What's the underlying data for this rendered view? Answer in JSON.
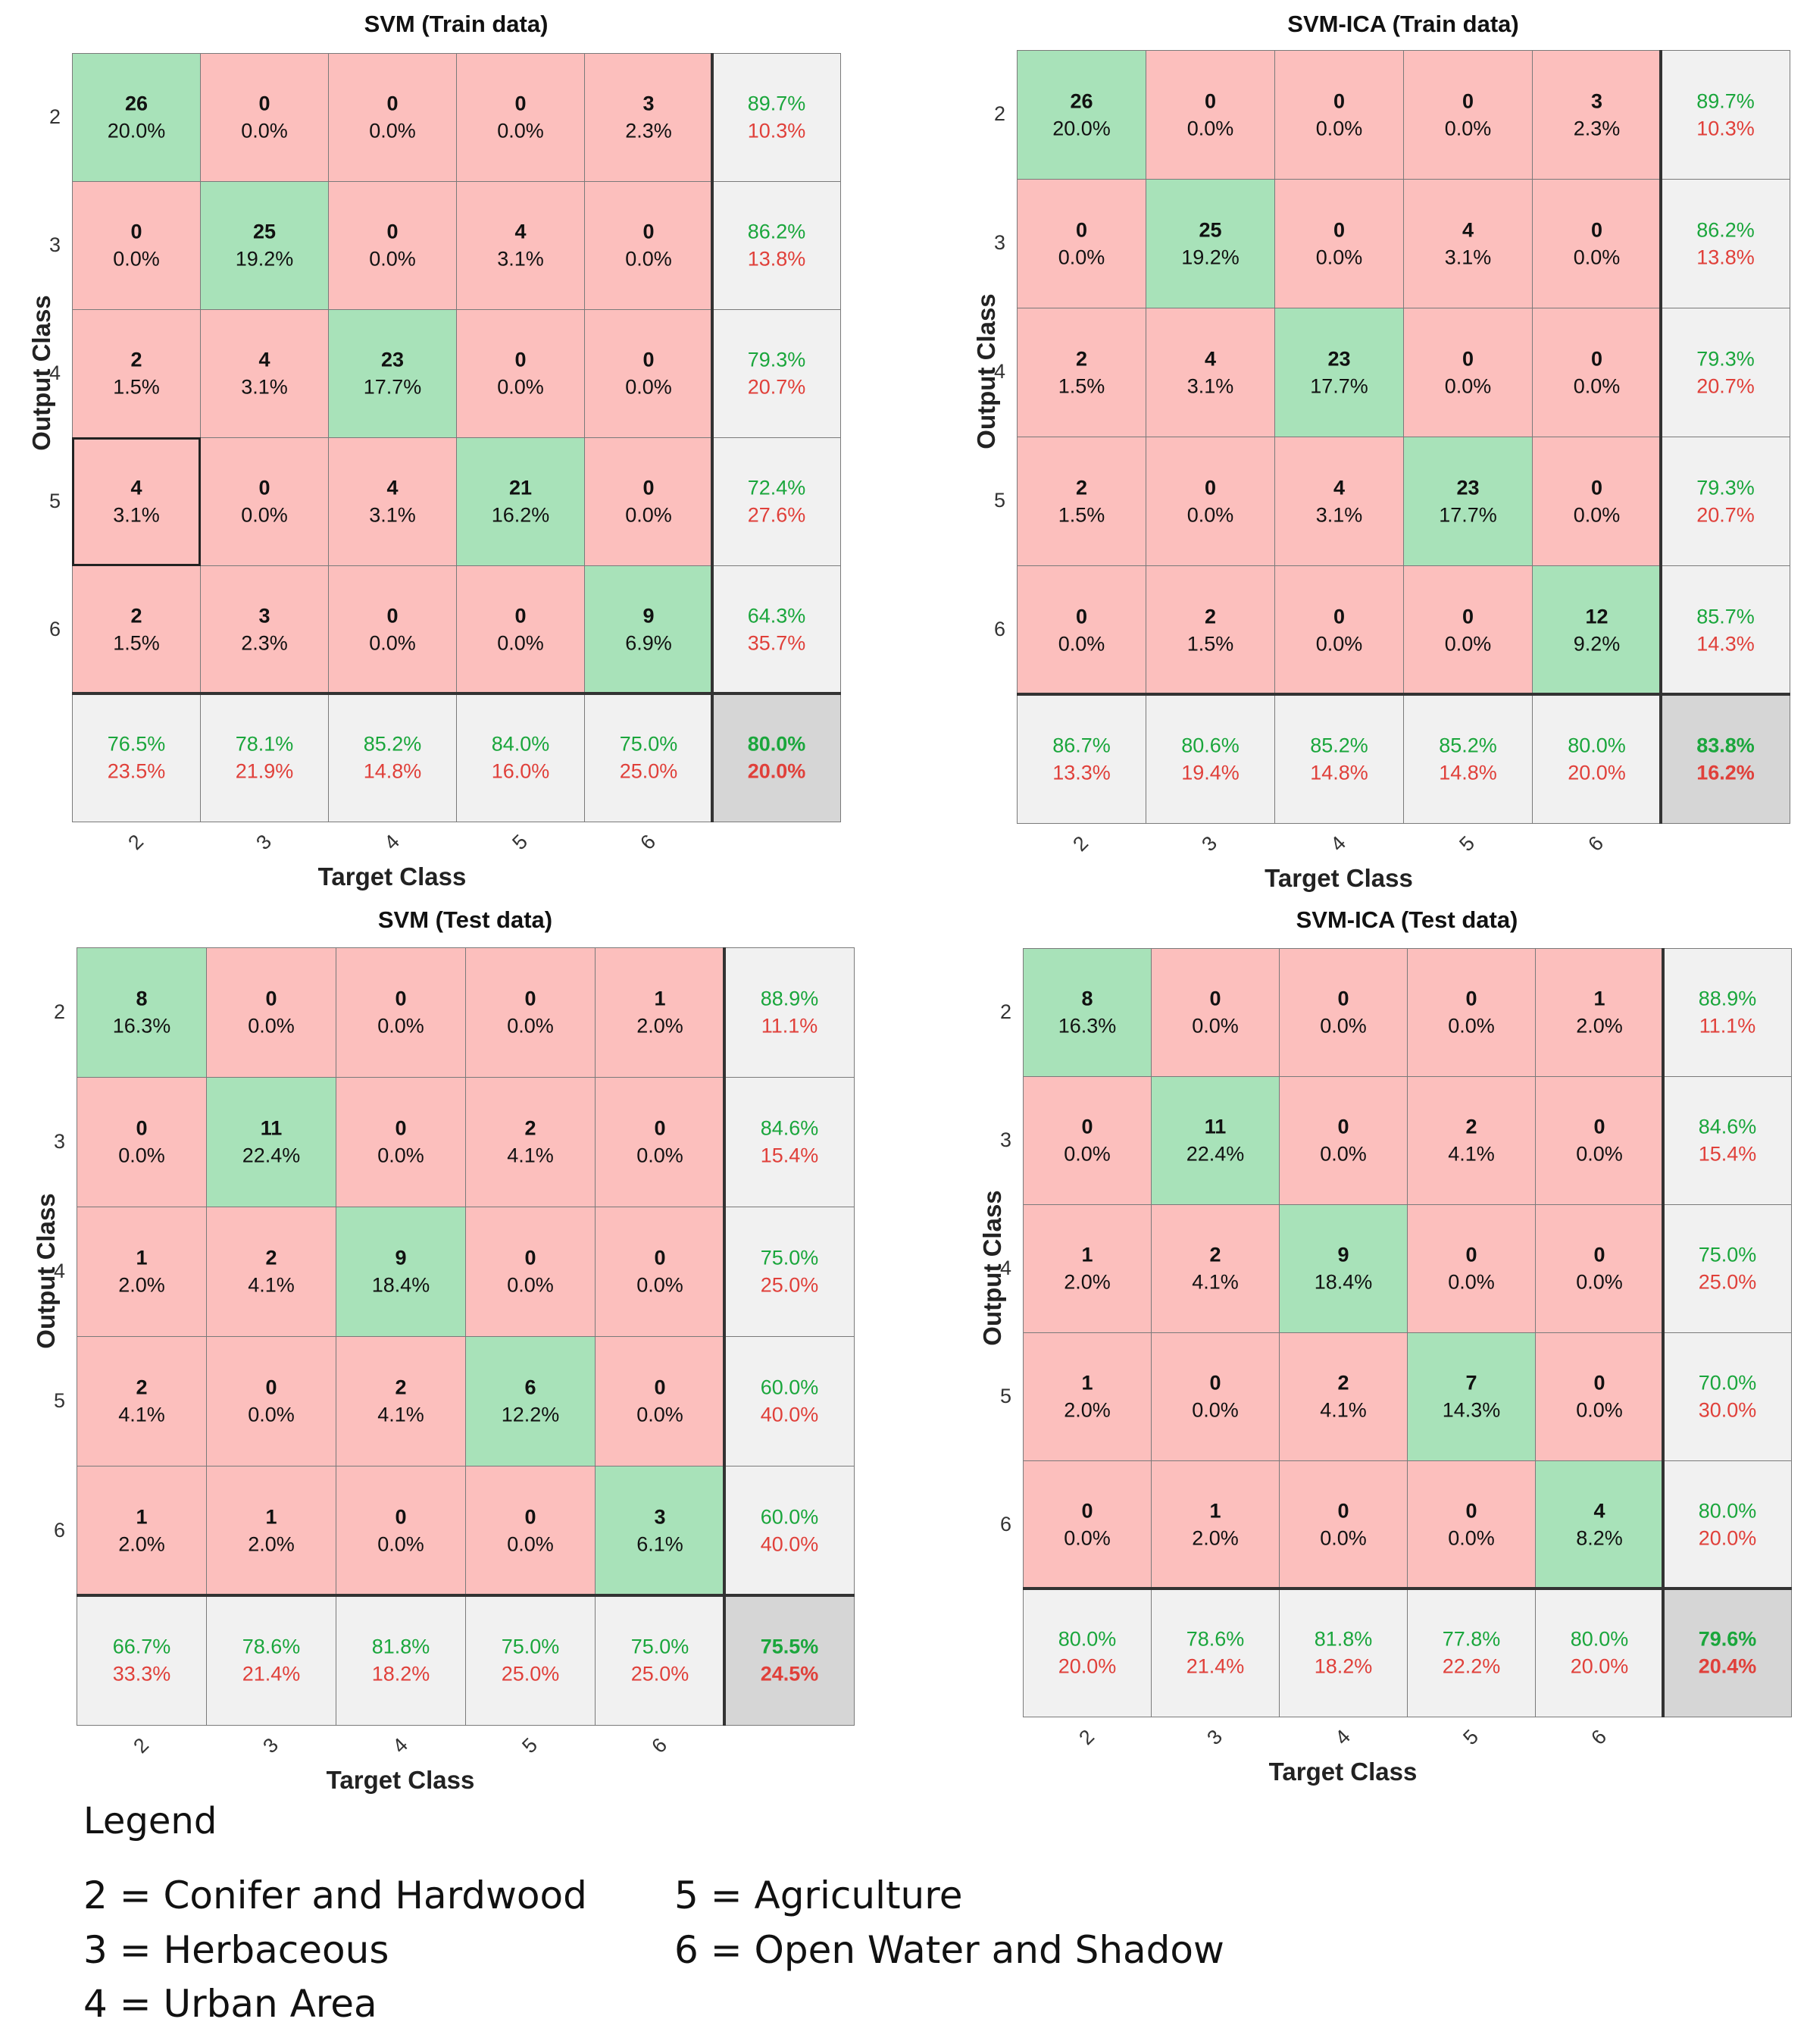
{
  "chart_data": [
    {
      "type": "table",
      "title": "SVM (Train data)",
      "xlabel": "Target Class",
      "ylabel": "Output Class",
      "classes": [
        "2",
        "3",
        "4",
        "5",
        "6"
      ],
      "counts": [
        [
          26,
          0,
          0,
          0,
          3
        ],
        [
          0,
          25,
          0,
          4,
          0
        ],
        [
          2,
          4,
          23,
          0,
          0
        ],
        [
          4,
          0,
          4,
          21,
          0
        ],
        [
          2,
          3,
          0,
          0,
          9
        ]
      ],
      "percents": [
        [
          "20.0%",
          "0.0%",
          "0.0%",
          "0.0%",
          "2.3%"
        ],
        [
          "0.0%",
          "19.2%",
          "0.0%",
          "3.1%",
          "0.0%"
        ],
        [
          "1.5%",
          "3.1%",
          "17.7%",
          "0.0%",
          "0.0%"
        ],
        [
          "3.1%",
          "0.0%",
          "3.1%",
          "16.2%",
          "0.0%"
        ],
        [
          "1.5%",
          "2.3%",
          "0.0%",
          "0.0%",
          "6.9%"
        ]
      ],
      "row_summary": [
        [
          "89.7%",
          "10.3%"
        ],
        [
          "86.2%",
          "13.8%"
        ],
        [
          "79.3%",
          "20.7%"
        ],
        [
          "72.4%",
          "27.6%"
        ],
        [
          "64.3%",
          "35.7%"
        ]
      ],
      "col_summary": [
        [
          "76.5%",
          "23.5%"
        ],
        [
          "78.1%",
          "21.9%"
        ],
        [
          "85.2%",
          "14.8%"
        ],
        [
          "84.0%",
          "16.0%"
        ],
        [
          "75.0%",
          "25.0%"
        ]
      ],
      "overall": [
        "80.0%",
        "20.0%"
      ]
    },
    {
      "type": "table",
      "title": "SVM-ICA (Train data)",
      "xlabel": "Target Class",
      "ylabel": "Output Class",
      "classes": [
        "2",
        "3",
        "4",
        "5",
        "6"
      ],
      "counts": [
        [
          26,
          0,
          0,
          0,
          3
        ],
        [
          0,
          25,
          0,
          4,
          0
        ],
        [
          2,
          4,
          23,
          0,
          0
        ],
        [
          2,
          0,
          4,
          23,
          0
        ],
        [
          0,
          2,
          0,
          0,
          12
        ]
      ],
      "percents": [
        [
          "20.0%",
          "0.0%",
          "0.0%",
          "0.0%",
          "2.3%"
        ],
        [
          "0.0%",
          "19.2%",
          "0.0%",
          "3.1%",
          "0.0%"
        ],
        [
          "1.5%",
          "3.1%",
          "17.7%",
          "0.0%",
          "0.0%"
        ],
        [
          "1.5%",
          "0.0%",
          "3.1%",
          "17.7%",
          "0.0%"
        ],
        [
          "0.0%",
          "1.5%",
          "0.0%",
          "0.0%",
          "9.2%"
        ]
      ],
      "row_summary": [
        [
          "89.7%",
          "10.3%"
        ],
        [
          "86.2%",
          "13.8%"
        ],
        [
          "79.3%",
          "20.7%"
        ],
        [
          "79.3%",
          "20.7%"
        ],
        [
          "85.7%",
          "14.3%"
        ]
      ],
      "col_summary": [
        [
          "86.7%",
          "13.3%"
        ],
        [
          "80.6%",
          "19.4%"
        ],
        [
          "85.2%",
          "14.8%"
        ],
        [
          "85.2%",
          "14.8%"
        ],
        [
          "80.0%",
          "20.0%"
        ]
      ],
      "overall": [
        "83.8%",
        "16.2%"
      ]
    },
    {
      "type": "table",
      "title": "SVM (Test data)",
      "xlabel": "Target Class",
      "ylabel": "Output Class",
      "classes": [
        "2",
        "3",
        "4",
        "5",
        "6"
      ],
      "counts": [
        [
          8,
          0,
          0,
          0,
          1
        ],
        [
          0,
          11,
          0,
          2,
          0
        ],
        [
          1,
          2,
          9,
          0,
          0
        ],
        [
          2,
          0,
          2,
          6,
          0
        ],
        [
          1,
          1,
          0,
          0,
          3
        ]
      ],
      "percents": [
        [
          "16.3%",
          "0.0%",
          "0.0%",
          "0.0%",
          "2.0%"
        ],
        [
          "0.0%",
          "22.4%",
          "0.0%",
          "4.1%",
          "0.0%"
        ],
        [
          "2.0%",
          "4.1%",
          "18.4%",
          "0.0%",
          "0.0%"
        ],
        [
          "4.1%",
          "0.0%",
          "4.1%",
          "12.2%",
          "0.0%"
        ],
        [
          "2.0%",
          "2.0%",
          "0.0%",
          "0.0%",
          "6.1%"
        ]
      ],
      "row_summary": [
        [
          "88.9%",
          "11.1%"
        ],
        [
          "84.6%",
          "15.4%"
        ],
        [
          "75.0%",
          "25.0%"
        ],
        [
          "60.0%",
          "40.0%"
        ],
        [
          "60.0%",
          "40.0%"
        ]
      ],
      "col_summary": [
        [
          "66.7%",
          "33.3%"
        ],
        [
          "78.6%",
          "21.4%"
        ],
        [
          "81.8%",
          "18.2%"
        ],
        [
          "75.0%",
          "25.0%"
        ],
        [
          "75.0%",
          "25.0%"
        ]
      ],
      "overall": [
        "75.5%",
        "24.5%"
      ]
    },
    {
      "type": "table",
      "title": "SVM-ICA (Test data)",
      "xlabel": "Target Class",
      "ylabel": "Output Class",
      "classes": [
        "2",
        "3",
        "4",
        "5",
        "6"
      ],
      "counts": [
        [
          8,
          0,
          0,
          0,
          1
        ],
        [
          0,
          11,
          0,
          2,
          0
        ],
        [
          1,
          2,
          9,
          0,
          0
        ],
        [
          1,
          0,
          2,
          7,
          0
        ],
        [
          0,
          1,
          0,
          0,
          4
        ]
      ],
      "percents": [
        [
          "16.3%",
          "0.0%",
          "0.0%",
          "0.0%",
          "2.0%"
        ],
        [
          "0.0%",
          "22.4%",
          "0.0%",
          "4.1%",
          "0.0%"
        ],
        [
          "2.0%",
          "4.1%",
          "18.4%",
          "0.0%",
          "0.0%"
        ],
        [
          "2.0%",
          "0.0%",
          "4.1%",
          "14.3%",
          "0.0%"
        ],
        [
          "0.0%",
          "2.0%",
          "0.0%",
          "0.0%",
          "8.2%"
        ]
      ],
      "row_summary": [
        [
          "88.9%",
          "11.1%"
        ],
        [
          "84.6%",
          "15.4%"
        ],
        [
          "75.0%",
          "25.0%"
        ],
        [
          "70.0%",
          "30.0%"
        ],
        [
          "80.0%",
          "20.0%"
        ]
      ],
      "col_summary": [
        [
          "80.0%",
          "20.0%"
        ],
        [
          "78.6%",
          "21.4%"
        ],
        [
          "81.8%",
          "18.2%"
        ],
        [
          "77.8%",
          "22.2%"
        ],
        [
          "80.0%",
          "20.0%"
        ]
      ],
      "overall": [
        "79.6%",
        "20.4%"
      ]
    }
  ],
  "legend": {
    "title": "Legend",
    "items": [
      "2 = Conifer and Hardwood",
      "3 = Herbaceous",
      "4 = Urban Area",
      "5 = Agriculture",
      "6 = Open Water and Shadow"
    ]
  },
  "colors": {
    "correct": "#a8e2b9",
    "incorrect": "#fcbfbd",
    "summary": "#f1f1f1",
    "total": "#d6d6d6",
    "green_text": "#1aa63c",
    "red_text": "#e0403a"
  }
}
